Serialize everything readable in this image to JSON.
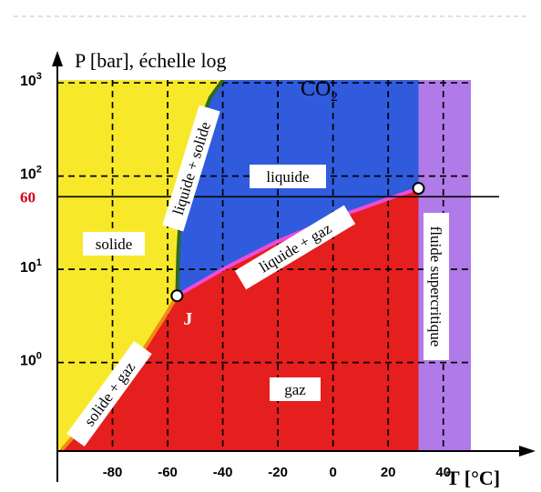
{
  "chart_data": {
    "type": "phase-diagram",
    "title": "CO2",
    "ylabel": "P [bar], échelle log",
    "xlabel": "T [°C]",
    "y_scale": "log",
    "x_ticks": [
      "-80",
      "-60",
      "-40",
      "-20",
      "0",
      "20",
      "40"
    ],
    "x_tick_values": [
      -80,
      -60,
      -40,
      -20,
      0,
      20,
      40
    ],
    "y_ticks": [
      {
        "base": "10",
        "exp": "0",
        "value": 1
      },
      {
        "base": "10",
        "exp": "1",
        "value": 10
      },
      {
        "base": "10",
        "exp": "2",
        "value": 100
      },
      {
        "base": "10",
        "exp": "3",
        "value": 1000
      }
    ],
    "highlight_pressure": {
      "label": "60",
      "value": 60,
      "color": "#d0021b"
    },
    "xlim": [
      -100,
      50
    ],
    "ylim_log10": [
      -0.95,
      3.03
    ],
    "regions": [
      {
        "label": "solide",
        "color": "#f7e92a"
      },
      {
        "label": "liquide",
        "color": "#2f5bdc"
      },
      {
        "label": "gaz",
        "color": "#e51e1e"
      },
      {
        "label": "fluide supercritique",
        "color": "#b07be8"
      }
    ],
    "curves": [
      {
        "name": "liquide + solide",
        "color": "#2d6a1f",
        "points": [
          [
            -56.6,
            5.2
          ],
          [
            -56.2,
            15
          ],
          [
            -55.0,
            60
          ],
          [
            -50.5,
            250
          ],
          [
            -44.5,
            700
          ],
          [
            -40.0,
            1070
          ]
        ]
      },
      {
        "name": "liquide + gaz",
        "color": "#f04bd8",
        "points": [
          [
            -56.6,
            5.2
          ],
          [
            -40,
            10
          ],
          [
            -20,
            20
          ],
          [
            0,
            35
          ],
          [
            20,
            57
          ],
          [
            31,
            73.8
          ]
        ]
      },
      {
        "name": "solide + gaz",
        "color": "#f08a16",
        "points": [
          [
            -98,
            0.12
          ],
          [
            -90,
            0.22
          ],
          [
            -80,
            0.45
          ],
          [
            -70,
            1.2
          ],
          [
            -60,
            3.5
          ],
          [
            -56.6,
            5.2
          ]
        ]
      }
    ],
    "points": [
      {
        "label": "J",
        "x": -56.6,
        "y": 5.2
      },
      {
        "label": "",
        "x": 31.0,
        "y": 73.8
      }
    ],
    "grid": true,
    "grid_style": "dashed"
  }
}
